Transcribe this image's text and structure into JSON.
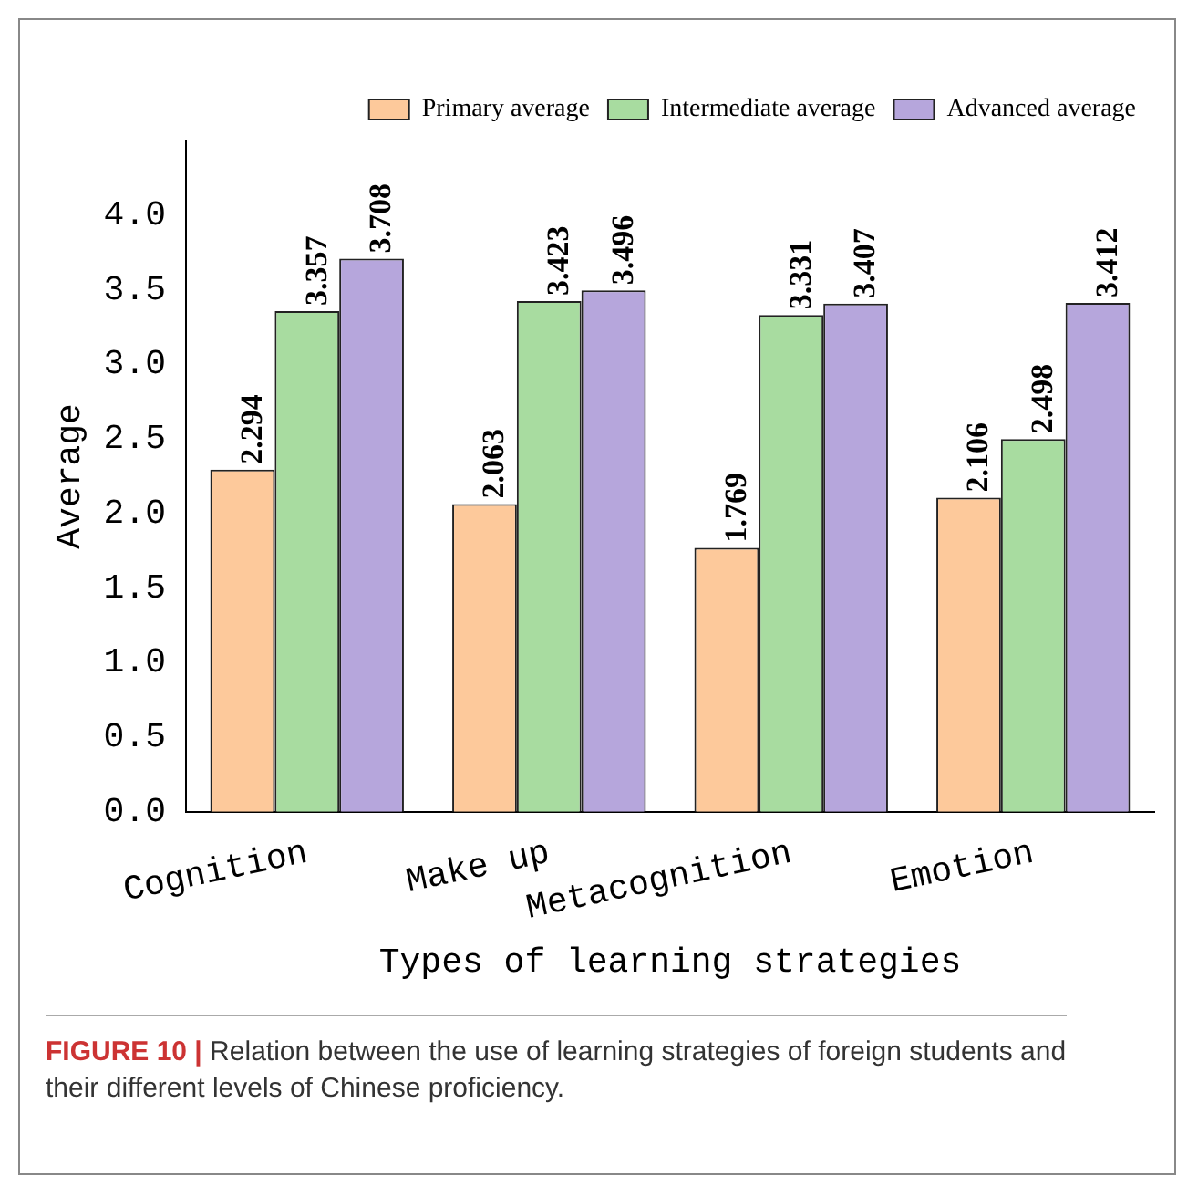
{
  "chart_data": {
    "type": "bar",
    "xlabel": "Types of learning strategies",
    "ylabel": "Average",
    "categories": [
      "Cognition",
      "Make up",
      "Metacognition",
      "Emotion"
    ],
    "series": [
      {
        "name": "Primary average",
        "color": "#fdc99b",
        "values": [
          2.294,
          2.063,
          1.769,
          2.106
        ]
      },
      {
        "name": "Intermediate average",
        "color": "#a8dca0",
        "values": [
          3.357,
          3.423,
          3.331,
          2.498
        ]
      },
      {
        "name": "Advanced average",
        "color": "#b6a6dc",
        "values": [
          3.708,
          3.496,
          3.407,
          3.412
        ]
      }
    ],
    "ylim": [
      0,
      4.5
    ],
    "yticks": [
      {
        "value": 0,
        "label": "0.0"
      },
      {
        "value": 0.5,
        "label": "0.5"
      },
      {
        "value": 1,
        "label": "1.0"
      },
      {
        "value": 1.5,
        "label": "1.5"
      },
      {
        "value": 2,
        "label": "2.0"
      },
      {
        "value": 2.5,
        "label": "2.5"
      },
      {
        "value": 3,
        "label": "3.0"
      },
      {
        "value": 3.5,
        "label": "3.5"
      },
      {
        "value": 4,
        "label": "4.0"
      }
    ],
    "data_labels": true,
    "legend": "top right",
    "grid": false,
    "annotations": [
      "FIGURE 10 | Relation between the use of learning strategies of foreign students and their different levels of Chinese proficiency."
    ]
  }
}
